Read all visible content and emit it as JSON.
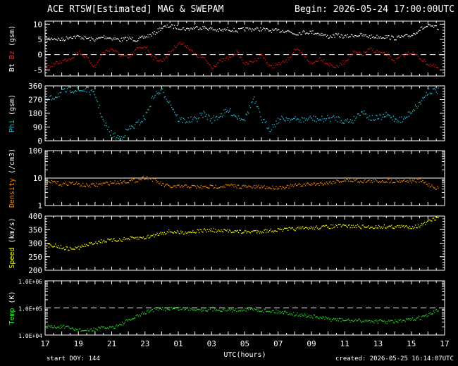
{
  "header": {
    "title": "ACE RTSW[Estimated] MAG & SWEPAM",
    "begin": "Begin: 2026-05-24 17:00:00UTC"
  },
  "footer": {
    "start_doy": "start DOY: 144",
    "created": "created: 2026-05-25 16:14:07UTC"
  },
  "chart_data": [
    {
      "type": "scatter",
      "id": "mag",
      "ylabel": "Bt  Bz  (gsm)",
      "ylabel_parts": [
        {
          "text": "Bt",
          "color": "#ffffff"
        },
        {
          "text": "Bz",
          "color": "#ff2020"
        },
        {
          "text": "(gsm)",
          "color": "#ffffff"
        }
      ],
      "ylim": [
        -7,
        11
      ],
      "yticks": [
        -5,
        0,
        5,
        10
      ],
      "ref_line": 0,
      "x_hours": [
        0,
        1,
        2,
        3,
        4,
        5,
        6,
        6.5,
        7,
        8,
        9,
        10,
        11,
        12,
        13,
        14,
        15,
        16,
        17,
        18,
        19,
        20,
        21,
        22,
        23,
        24,
        25,
        26,
        27,
        28,
        29,
        30,
        31,
        32,
        33,
        34,
        35,
        36,
        37,
        38,
        39,
        40,
        41,
        42,
        43,
        44,
        45,
        46,
        47,
        48
      ],
      "series": [
        {
          "name": "Bt",
          "color": "#ffffff",
          "values": [
            5,
            5.5,
            5,
            6,
            6,
            5.5,
            5,
            5.5,
            6,
            5.5,
            5,
            5.5,
            5,
            6,
            7,
            9,
            9.5,
            9,
            8.5,
            9,
            9,
            8.5,
            8,
            8.5,
            8,
            8.5,
            8.5,
            8.5,
            8,
            8,
            8,
            7,
            7.5,
            7.5,
            7,
            6,
            6.5,
            6,
            6.5,
            6.5,
            6,
            6,
            6,
            5.5,
            6,
            6.5,
            8.5,
            9.5,
            9,
            8
          ]
        },
        {
          "name": "Bz",
          "color": "#e01010",
          "values": [
            -4,
            -3,
            -2,
            -1,
            1,
            -1,
            -4,
            -1,
            1,
            2,
            0,
            -1,
            2,
            3,
            -1,
            -2,
            1,
            4,
            3,
            0,
            -1,
            -4,
            -2,
            -1,
            1,
            -3,
            -2,
            0,
            -4,
            -3,
            -2,
            2,
            0,
            -3,
            -1,
            -3,
            -4,
            -2,
            1,
            0,
            2,
            1,
            0,
            -2,
            0,
            1,
            -1,
            -3,
            -4,
            -5
          ]
        }
      ]
    },
    {
      "type": "scatter",
      "id": "phi",
      "ylabel": "Phi (gsm)",
      "ylabel_parts": [
        {
          "text": "Phi",
          "color": "#20c8e0"
        },
        {
          "text": "(gsm)",
          "color": "#ffffff"
        }
      ],
      "ylim": [
        0,
        360
      ],
      "yticks": [
        0,
        90,
        180,
        270,
        360
      ],
      "x_hours": [
        0,
        1,
        2,
        3,
        4,
        5,
        6,
        7,
        8,
        9,
        10,
        11,
        12,
        13,
        14,
        15,
        16,
        17,
        18,
        19,
        20,
        21,
        22,
        23,
        24,
        25,
        26,
        27,
        28,
        29,
        30,
        31,
        32,
        33,
        34,
        35,
        36,
        37,
        38,
        39,
        40,
        41,
        42,
        43,
        44,
        45,
        46,
        47,
        48
      ],
      "series": [
        {
          "name": "Phi",
          "color": "#20c8e0",
          "values": [
            260,
            290,
            320,
            340,
            330,
            340,
            300,
            120,
            40,
            20,
            80,
            110,
            160,
            300,
            330,
            250,
            140,
            135,
            140,
            180,
            140,
            170,
            200,
            160,
            150,
            280,
            140,
            80,
            140,
            150,
            140,
            140,
            150,
            140,
            150,
            150,
            130,
            140,
            200,
            150,
            150,
            170,
            145,
            140,
            200,
            250,
            330,
            330,
            320
          ]
        }
      ]
    },
    {
      "type": "scatter",
      "id": "density",
      "ylabel": "Density (/cm3)",
      "ylabel_parts": [
        {
          "text": "Density",
          "color": "#ff8800"
        },
        {
          "text": "(/cm3)",
          "color": "#ffffff"
        }
      ],
      "yscale": "log",
      "ylim": [
        1,
        100
      ],
      "yticks": [
        1,
        10,
        100
      ],
      "ref_line": 10,
      "x_hours": [
        0,
        1,
        2,
        3,
        4,
        5,
        6,
        7,
        8,
        9,
        10,
        11,
        12,
        13,
        14,
        15,
        16,
        17,
        18,
        19,
        20,
        21,
        22,
        23,
        24,
        25,
        26,
        27,
        28,
        29,
        30,
        31,
        32,
        33,
        34,
        35,
        36,
        37,
        38,
        39,
        40,
        41,
        42,
        43,
        44,
        45,
        46,
        47,
        48
      ],
      "series": [
        {
          "name": "Density",
          "color": "#ff8800",
          "values": [
            6.5,
            7.5,
            6,
            7,
            6,
            5.5,
            5.8,
            6.5,
            7,
            7.5,
            8,
            8.5,
            11,
            9,
            6,
            5,
            5,
            5.2,
            5,
            4.8,
            5,
            5.2,
            5.5,
            5.2,
            5,
            4.8,
            5,
            4.6,
            4.8,
            5,
            5.5,
            6,
            6.2,
            6.5,
            7,
            8,
            8.5,
            8.5,
            8,
            8,
            8,
            8.2,
            8,
            8.5,
            8,
            8.2,
            6,
            4.5,
            5
          ]
        }
      ]
    },
    {
      "type": "scatter",
      "id": "speed",
      "ylabel": "Speed (km/s)",
      "ylabel_parts": [
        {
          "text": "Speed",
          "color": "#ffff00"
        },
        {
          "text": "(km/s)",
          "color": "#ffffff"
        }
      ],
      "ylim": [
        200,
        400
      ],
      "yticks": [
        200,
        250,
        300,
        350,
        400
      ],
      "x_hours": [
        0,
        1,
        2,
        3,
        4,
        5,
        6,
        7,
        8,
        9,
        10,
        11,
        12,
        13,
        14,
        15,
        16,
        17,
        18,
        19,
        20,
        21,
        22,
        23,
        24,
        25,
        26,
        27,
        28,
        29,
        30,
        31,
        32,
        33,
        34,
        35,
        36,
        37,
        38,
        39,
        40,
        41,
        42,
        43,
        44,
        45,
        46,
        47,
        48
      ],
      "series": [
        {
          "name": "Speed",
          "color": "#ffff00",
          "values": [
            290,
            295,
            285,
            280,
            285,
            295,
            305,
            310,
            312,
            314,
            318,
            320,
            322,
            330,
            340,
            345,
            340,
            343,
            345,
            348,
            350,
            345,
            348,
            345,
            342,
            345,
            346,
            348,
            350,
            352,
            354,
            356,
            358,
            360,
            362,
            364,
            365,
            363,
            362,
            361,
            362,
            363,
            362,
            362,
            362,
            365,
            380,
            395,
            400
          ]
        }
      ]
    },
    {
      "type": "scatter",
      "id": "temp",
      "ylabel": "Temp (K)",
      "ylabel_parts": [
        {
          "text": "Temp",
          "color": "#20ff20"
        },
        {
          "text": "(K)",
          "color": "#ffffff"
        }
      ],
      "yscale": "log",
      "ylim": [
        10000,
        1000000
      ],
      "yticks": [
        10000,
        100000,
        1000000
      ],
      "ytick_labels": [
        "1.0E+04",
        "1.0E+05",
        "1.0E+06"
      ],
      "ref_line": 100000,
      "x_hours": [
        0,
        1,
        2,
        3,
        4,
        5,
        6,
        7,
        8,
        9,
        10,
        11,
        12,
        13,
        14,
        15,
        16,
        17,
        18,
        19,
        20,
        21,
        22,
        23,
        24,
        25,
        26,
        27,
        28,
        29,
        30,
        31,
        32,
        33,
        34,
        35,
        36,
        37,
        38,
        39,
        40,
        41,
        42,
        43,
        44,
        45,
        46,
        47,
        48
      ],
      "series": [
        {
          "name": "Temp",
          "color": "#20e020",
          "values": [
            22000,
            20000,
            21000,
            18000,
            16000,
            15000,
            17000,
            19000,
            20000,
            25000,
            35000,
            50000,
            70000,
            90000,
            95000,
            100000,
            98000,
            96000,
            95000,
            90000,
            95000,
            90000,
            85000,
            88000,
            95000,
            90000,
            85000,
            80000,
            75000,
            70000,
            60000,
            55000,
            50000,
            45000,
            40000,
            38000,
            36000,
            35000,
            35000,
            34000,
            33000,
            32000,
            33000,
            34000,
            38000,
            45000,
            55000,
            80000,
            100000
          ]
        }
      ]
    }
  ],
  "xaxis": {
    "label": "UTC(hours)",
    "tick_labels": [
      "17",
      "19",
      "21",
      "23",
      "01",
      "03",
      "05",
      "07",
      "09",
      "11",
      "13",
      "15",
      "17"
    ]
  }
}
